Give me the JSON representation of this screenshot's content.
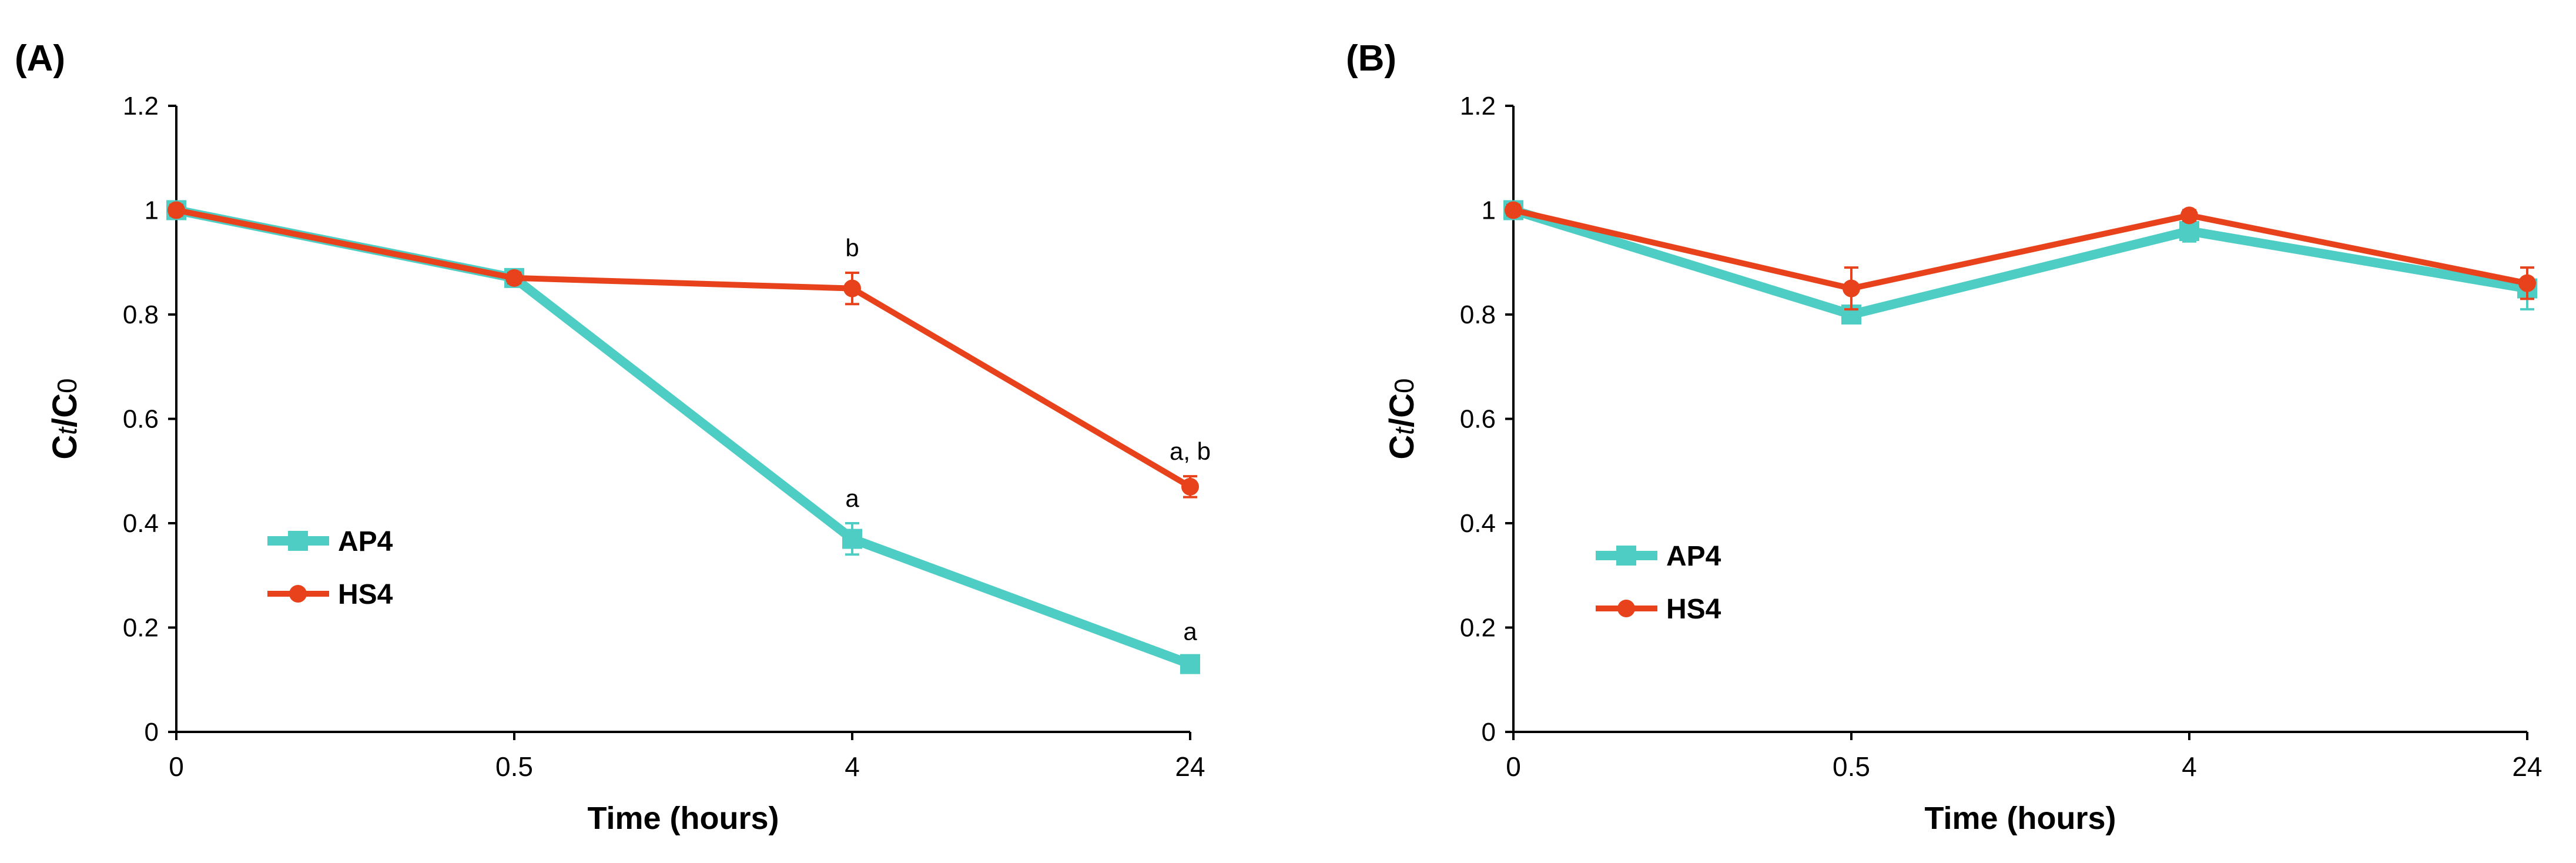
{
  "colors": {
    "AP4": "#4ECDC4",
    "HS4": "#E8421C",
    "axis": "#000000"
  },
  "chart_data": [
    {
      "panel_label": "(A)",
      "type": "line",
      "categories": [
        "0",
        "0.5",
        "4",
        "24"
      ],
      "xlabel": "Time (hours)",
      "ylabel": {
        "main": "C",
        "sub1": "t",
        "mid": "/C",
        "sub2": "0"
      },
      "ylim": [
        0,
        1.2
      ],
      "yticks": [
        "0",
        "0.2",
        "0.4",
        "0.6",
        "0.8",
        "1",
        "1.2"
      ],
      "legend": "left-middle",
      "series": [
        {
          "name": "AP4",
          "marker": "square",
          "values": [
            1.0,
            0.87,
            0.37,
            0.13
          ],
          "errors": [
            0.01,
            0.01,
            0.03,
            0.015
          ]
        },
        {
          "name": "HS4",
          "marker": "circle",
          "values": [
            1.0,
            0.87,
            0.85,
            0.47
          ],
          "errors": [
            0.01,
            0.01,
            0.03,
            0.02
          ]
        }
      ],
      "annotations": [
        {
          "series": "AP4",
          "index": 2,
          "text": "a"
        },
        {
          "series": "AP4",
          "index": 3,
          "text": "a"
        },
        {
          "series": "HS4",
          "index": 2,
          "text": "b"
        },
        {
          "series": "HS4",
          "index": 3,
          "text": "a, b"
        }
      ]
    },
    {
      "panel_label": "(B)",
      "type": "line",
      "categories": [
        "0",
        "0.5",
        "4",
        "24"
      ],
      "xlabel": "Time (hours)",
      "ylabel": {
        "main": "C",
        "sub1": "t",
        "mid": "/C",
        "sub2": "0"
      },
      "ylim": [
        0,
        1.2
      ],
      "yticks": [
        "0",
        "0.2",
        "0.4",
        "0.6",
        "0.8",
        "1",
        "1.2"
      ],
      "legend": "left-middle",
      "series": [
        {
          "name": "AP4",
          "marker": "square",
          "values": [
            1.0,
            0.8,
            0.96,
            0.85
          ],
          "errors": [
            0.01,
            0.01,
            0.02,
            0.04
          ]
        },
        {
          "name": "HS4",
          "marker": "circle",
          "values": [
            1.0,
            0.85,
            0.99,
            0.86
          ],
          "errors": [
            0.01,
            0.04,
            0.01,
            0.03
          ]
        }
      ],
      "annotations": []
    }
  ]
}
